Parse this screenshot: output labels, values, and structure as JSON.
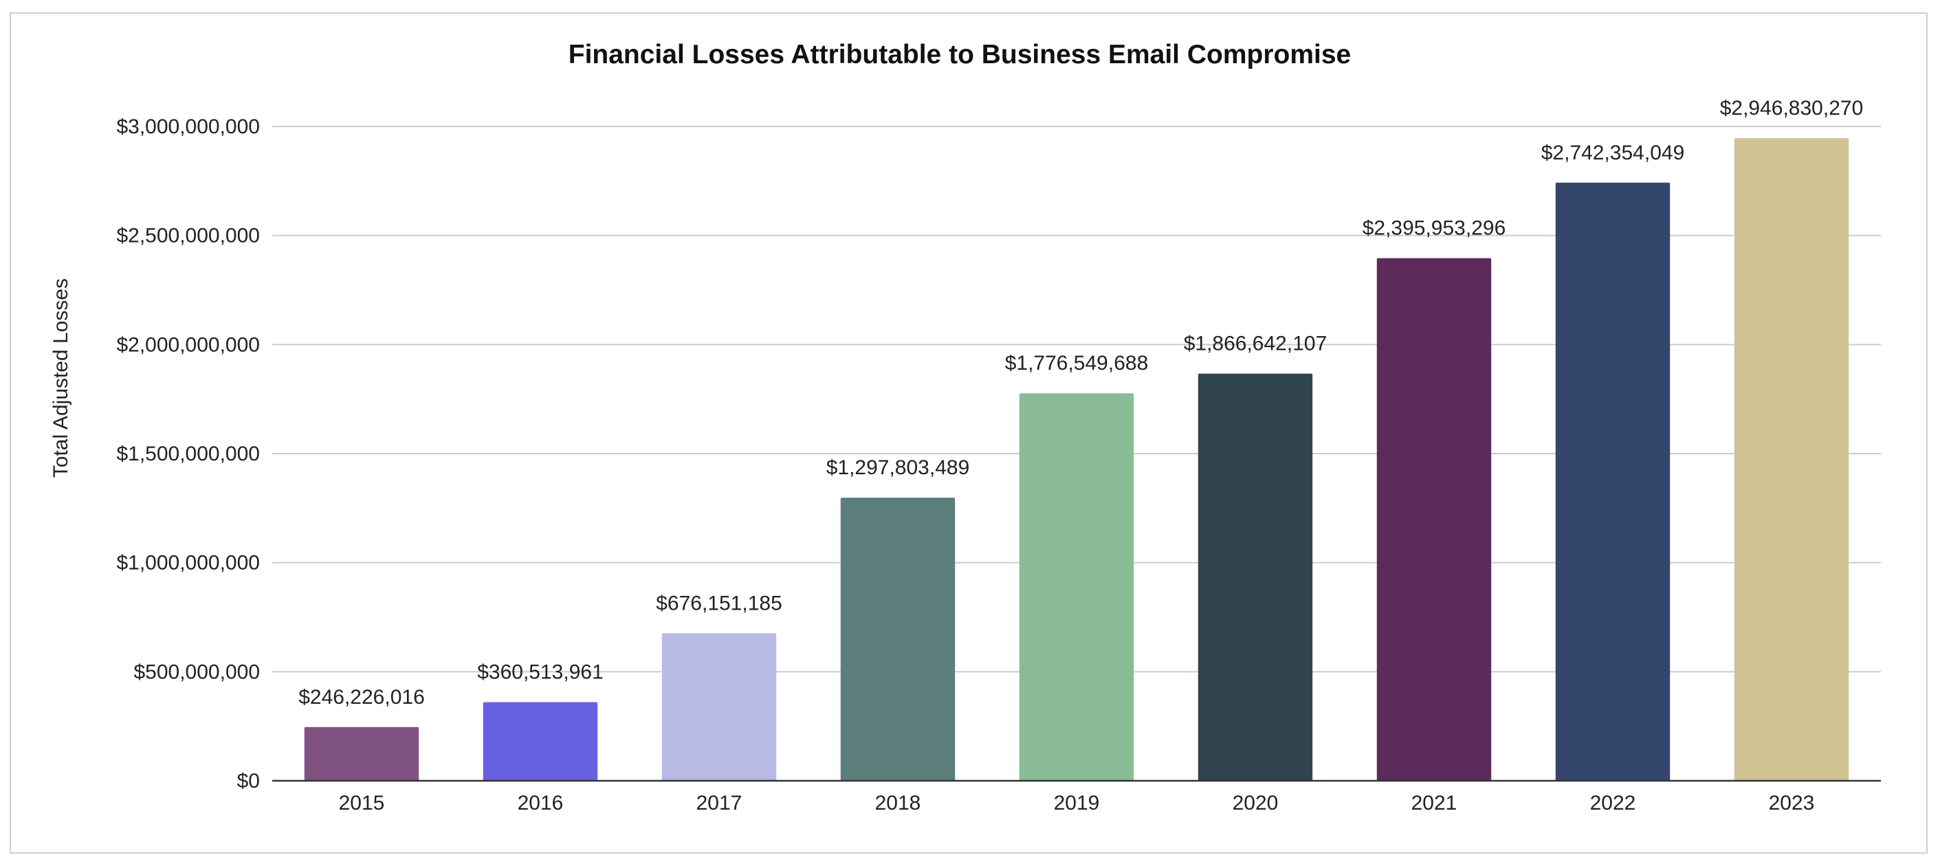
{
  "chart_data": {
    "type": "bar",
    "title": "Financial Losses Attributable to Business Email Compromise",
    "xlabel": "",
    "ylabel": "Total Adjusted Losses",
    "categories": [
      "2015",
      "2016",
      "2017",
      "2018",
      "2019",
      "2020",
      "2021",
      "2022",
      "2023"
    ],
    "values": [
      246226016,
      360513961,
      676151185,
      1297803489,
      1776549688,
      1866642107,
      2395953296,
      2742354049,
      2946830270
    ],
    "value_labels": [
      "$246,226,016",
      "$360,513,961",
      "$676,151,185",
      "$1,297,803,489",
      "$1,776,549,688",
      "$1,866,642,107",
      "$2,395,953,296",
      "$2,742,354,049",
      "$2,946,830,270"
    ],
    "colors": [
      "#7f5282",
      "#6761e1",
      "#b9b9e6",
      "#5b7e7c",
      "#89bc94",
      "#30444f",
      "#5c2b5c",
      "#34466c",
      "#d0c394"
    ],
    "ylim": [
      0,
      3000000000
    ],
    "yticks": [
      0,
      500000000,
      1000000000,
      1500000000,
      2000000000,
      2500000000,
      3000000000
    ],
    "ytick_labels": [
      "$0",
      "$500,000,000",
      "$1,000,000,000",
      "$1,500,000,000",
      "$2,000,000,000",
      "$2,500,000,000",
      "$3,000,000,000"
    ],
    "grid": true,
    "legend": "none"
  }
}
